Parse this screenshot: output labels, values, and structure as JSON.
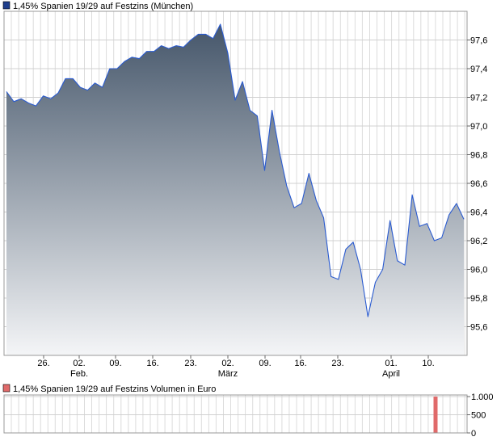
{
  "main_chart": {
    "legend_label": "1,45% Spanien 19/29 auf Festzins (München)",
    "legend_color": "#1f3e8c",
    "line_color": "#2a5bd0",
    "fill_top_color": "#45566a",
    "fill_bottom_color": "#f4f5f7"
  },
  "volume_chart": {
    "legend_label": "1,45% Spanien 19/29 auf Festzins Volumen in Euro",
    "legend_color": "#e06a6a",
    "bar_color": "#e06a6a",
    "y_tick_labels": [
      "1.000",
      "500",
      "0"
    ]
  },
  "x_tick_labels": [
    "26.",
    "02.",
    "09.",
    "16.",
    "23.",
    "02.",
    "09.",
    "16.",
    "23.",
    "01.",
    "10."
  ],
  "x_month_labels": [
    "Feb.",
    "März",
    "April"
  ],
  "chart_data": [
    {
      "type": "area",
      "title": "1,45% Spanien 19/29 auf Festzins (München)",
      "xlabel": "",
      "ylabel": "",
      "ylim": [
        95.4,
        97.8
      ],
      "y_ticks": [
        95.6,
        95.8,
        96.0,
        96.2,
        96.4,
        96.6,
        96.8,
        97.0,
        97.2,
        97.4,
        97.6
      ],
      "y_tick_labels": [
        "95,6",
        "95,8",
        "96,0",
        "96,2",
        "96,4",
        "96,6",
        "96,8",
        "97,0",
        "97,2",
        "97,4",
        "97,6"
      ],
      "x_ticks": [
        "26.",
        "02.",
        "09.",
        "16.",
        "23.",
        "02.",
        "09.",
        "16.",
        "23.",
        "01.",
        "10."
      ],
      "grid": true,
      "series": [
        {
          "name": "1,45% Spanien 19/29 auf Festzins (München)",
          "values": [
            97.24,
            97.17,
            97.19,
            97.16,
            97.14,
            97.21,
            97.19,
            97.23,
            97.33,
            97.33,
            97.27,
            97.25,
            97.3,
            97.27,
            97.4,
            97.4,
            97.45,
            97.48,
            97.47,
            97.52,
            97.52,
            97.56,
            97.54,
            97.56,
            97.55,
            97.6,
            97.64,
            97.64,
            97.61,
            97.71,
            97.51,
            97.18,
            97.31,
            97.11,
            97.07,
            96.69,
            97.11,
            96.82,
            96.58,
            96.43,
            96.46,
            96.67,
            96.48,
            96.36,
            95.95,
            95.93,
            96.14,
            96.19,
            96.0,
            95.67,
            95.91,
            96.0,
            96.34,
            96.06,
            96.03,
            96.52,
            96.3,
            96.32,
            96.2,
            96.22,
            96.38,
            96.46,
            96.35
          ]
        }
      ]
    },
    {
      "type": "bar",
      "title": "1,45% Spanien 19/29 auf Festzins Volumen in Euro",
      "ylim": [
        0,
        1000
      ],
      "y_tick_labels": [
        "1.000",
        "500",
        "0"
      ],
      "series": [
        {
          "name": "1,45% Spanien 19/29 auf Festzins Volumen in Euro",
          "bars": [
            {
              "index": 58,
              "value": 1000
            }
          ]
        }
      ]
    }
  ]
}
